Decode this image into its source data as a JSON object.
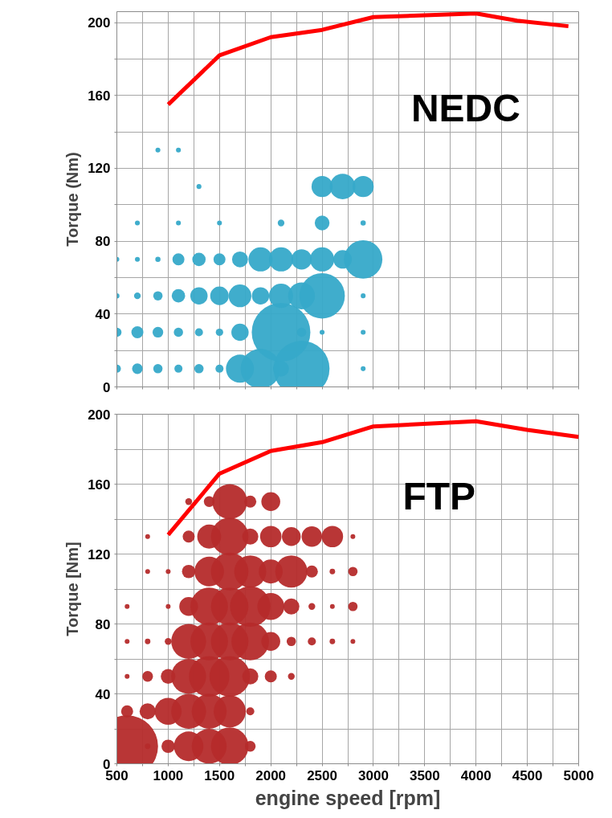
{
  "chart_data": [
    {
      "type": "bubble",
      "ylabel": "Torque (Nm)",
      "annotations": [
        "NEDC"
      ],
      "xlim": [
        500,
        5000
      ],
      "ylim": [
        0,
        206
      ],
      "xticks": [
        500,
        750,
        1000,
        1250,
        1500,
        1750,
        2000,
        2250,
        2500,
        2750,
        3000,
        3250,
        3500,
        3750,
        4000,
        4250,
        4500,
        4750,
        5000
      ],
      "yticks": [
        0,
        {
          "value": 20,
          "label": null
        },
        40,
        {
          "value": 60,
          "label": null
        },
        80,
        {
          "value": 100,
          "label": null
        },
        120,
        {
          "value": 140,
          "label": null
        },
        160,
        {
          "value": 180,
          "label": null
        },
        200
      ],
      "tick_labels": "y",
      "grid": true,
      "series": [
        {
          "color": "#36a9c9",
          "x": [
            500,
            700,
            900,
            1100,
            1300,
            1500,
            1700,
            1900,
            2100,
            2300,
            2900,
            500,
            700,
            900,
            1100,
            1300,
            1500,
            1700,
            2100,
            2300,
            2500,
            2900,
            500,
            700,
            900,
            1100,
            1300,
            1500,
            1700,
            1900,
            2100,
            2300,
            2500,
            2900,
            500,
            700,
            900,
            1100,
            1300,
            1500,
            1700,
            1900,
            2100,
            2300,
            2500,
            2700,
            2900,
            700,
            1100,
            1500,
            2100,
            2500,
            2900,
            1300,
            2500,
            2700,
            2900,
            900,
            1100
          ],
          "values": [
            10,
            10,
            10,
            10,
            10,
            10,
            10,
            10,
            10,
            10,
            10,
            30,
            30,
            30,
            30,
            30,
            30,
            30,
            30,
            30,
            30,
            30,
            50,
            50,
            50,
            50,
            50,
            50,
            50,
            50,
            50,
            50,
            50,
            50,
            70,
            70,
            70,
            70,
            70,
            70,
            70,
            70,
            70,
            70,
            70,
            70,
            70,
            90,
            90,
            90,
            90,
            90,
            90,
            110,
            110,
            110,
            110,
            130,
            130
          ],
          "sizes": [
            0.019,
            0.033,
            0.025,
            0.019,
            0.025,
            0.019,
            0.23,
            0.46,
            0.074,
            0.91,
            0.007,
            0.025,
            0.042,
            0.033,
            0.025,
            0.019,
            0.016,
            0.087,
            1,
            0.025,
            0.007,
            0.007,
            0.008,
            0.013,
            0.025,
            0.052,
            0.087,
            0.1,
            0.15,
            0.087,
            0.17,
            0.21,
            0.6,
            0.007,
            0.007,
            0.007,
            0.008,
            0.042,
            0.052,
            0.042,
            0.074,
            0.17,
            0.17,
            0.12,
            0.17,
            0.1,
            0.43,
            0.007,
            0.007,
            0.007,
            0.013,
            0.063,
            0.008,
            0.007,
            0.13,
            0.19,
            0.13,
            0.007,
            0.007
          ]
        },
        {
          "type": "line",
          "color": "#ff0000",
          "x": [
            1000,
            1500,
            2000,
            2500,
            3000,
            4000,
            4400,
            4900
          ],
          "values": [
            155,
            182,
            192,
            196,
            203,
            205,
            201,
            198
          ]
        }
      ]
    },
    {
      "type": "bubble",
      "xlabel": "engine speed [rpm]",
      "ylabel": "Torque [Nm]",
      "annotations": [
        "FTP"
      ],
      "xlim": [
        500,
        5000
      ],
      "ylim": [
        0,
        200
      ],
      "xticks": [
        500,
        {
          "value": 750,
          "label": null
        },
        1000,
        {
          "value": 1250,
          "label": null
        },
        1500,
        {
          "value": 1750,
          "label": null
        },
        2000,
        {
          "value": 2250,
          "label": null
        },
        2500,
        {
          "value": 2750,
          "label": null
        },
        3000,
        {
          "value": 3250,
          "label": null
        },
        3500,
        {
          "value": 3750,
          "label": null
        },
        4000,
        {
          "value": 4250,
          "label": null
        },
        4500,
        {
          "value": 4750,
          "label": null
        },
        5000
      ],
      "yticks": [
        0,
        {
          "value": 20,
          "label": null
        },
        40,
        {
          "value": 60,
          "label": null
        },
        80,
        {
          "value": 100,
          "label": null
        },
        120,
        {
          "value": 140,
          "label": null
        },
        160,
        {
          "value": 180,
          "label": null
        },
        200
      ],
      "grid": true,
      "series": [
        {
          "color": "#b52b2b",
          "x": [
            600,
            800,
            1000,
            1200,
            1400,
            1600,
            1800,
            600,
            800,
            1000,
            1200,
            1400,
            1600,
            1800,
            600,
            800,
            1000,
            1200,
            1400,
            1600,
            1800,
            2000,
            2200,
            600,
            800,
            1000,
            1200,
            1400,
            1600,
            1800,
            2000,
            2200,
            2400,
            2600,
            2800,
            600,
            1000,
            1200,
            1400,
            1600,
            1800,
            2000,
            2200,
            2400,
            2600,
            2800,
            800,
            1000,
            1200,
            1400,
            1600,
            1800,
            2000,
            2200,
            2400,
            2600,
            2800,
            800,
            1200,
            1400,
            1600,
            1800,
            2000,
            2200,
            2400,
            2600,
            2800,
            1200,
            1400,
            1600,
            1800,
            2000
          ],
          "values": [
            10,
            10,
            10,
            10,
            10,
            10,
            10,
            30,
            30,
            30,
            30,
            30,
            30,
            30,
            50,
            50,
            50,
            50,
            50,
            50,
            50,
            50,
            50,
            70,
            70,
            70,
            70,
            70,
            70,
            70,
            70,
            70,
            70,
            70,
            70,
            90,
            90,
            90,
            90,
            90,
            90,
            90,
            90,
            90,
            90,
            90,
            110,
            110,
            110,
            110,
            110,
            110,
            110,
            110,
            110,
            110,
            110,
            130,
            130,
            130,
            130,
            130,
            130,
            130,
            130,
            130,
            130,
            150,
            150,
            150,
            150,
            150
          ],
          "sizes": [
            1,
            0.008,
            0.047,
            0.23,
            0.32,
            0.37,
            0.03,
            0.038,
            0.068,
            0.19,
            0.32,
            0.32,
            0.27,
            0.017,
            0.006,
            0.03,
            0.057,
            0.32,
            0.43,
            0.43,
            0.068,
            0.038,
            0.012,
            0.006,
            0.008,
            0.012,
            0.32,
            0.37,
            0.37,
            0.37,
            0.093,
            0.023,
            0.017,
            0.008,
            0.006,
            0.006,
            0.006,
            0.093,
            0.37,
            0.37,
            0.43,
            0.19,
            0.068,
            0.012,
            0.006,
            0.023,
            0.006,
            0.006,
            0.047,
            0.23,
            0.37,
            0.27,
            0.15,
            0.27,
            0.038,
            0.008,
            0.023,
            0.006,
            0.038,
            0.15,
            0.37,
            0.068,
            0.12,
            0.093,
            0.11,
            0.12,
            0.006,
            0.012,
            0.03,
            0.32,
            0.038,
            0.093
          ]
        },
        {
          "type": "line",
          "color": "#ff0000",
          "x": [
            1000,
            1500,
            2000,
            2500,
            3000,
            4000,
            4500,
            5000
          ],
          "values": [
            131,
            166,
            179,
            184,
            193,
            196,
            191,
            187
          ]
        }
      ]
    }
  ]
}
